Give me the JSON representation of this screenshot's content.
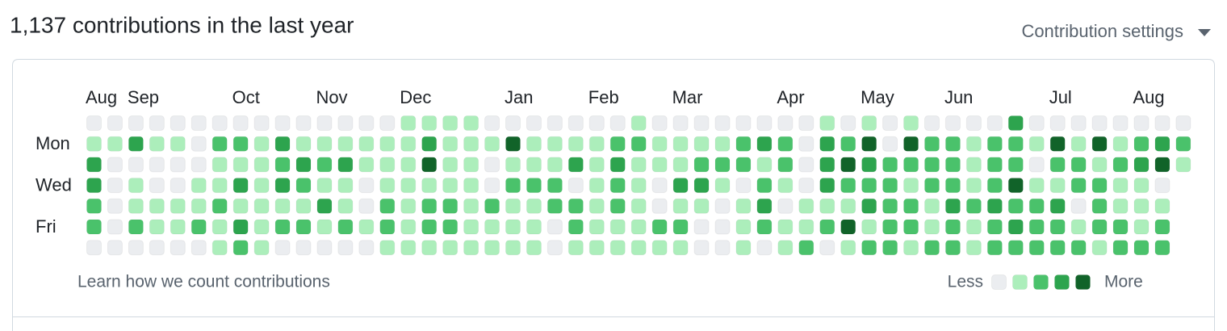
{
  "header": {
    "title": "1,137 contributions in the last year",
    "settings": "Contribution settings"
  },
  "calendar": {
    "months": [
      "Aug",
      null,
      "Sep",
      null,
      null,
      null,
      null,
      "Oct",
      null,
      null,
      null,
      "Nov",
      null,
      null,
      null,
      "Dec",
      null,
      null,
      null,
      null,
      "Jan",
      null,
      null,
      null,
      "Feb",
      null,
      null,
      null,
      "Mar",
      null,
      null,
      null,
      null,
      "Apr",
      null,
      null,
      null,
      "May",
      null,
      null,
      null,
      "Jun",
      null,
      null,
      null,
      null,
      "Jul",
      null,
      null,
      null,
      "Aug",
      null,
      null
    ],
    "days": [
      null,
      "Mon",
      null,
      "Wed",
      null,
      "Fri",
      null
    ],
    "colors": [
      "#ebedf0",
      "#aceebb",
      "#4ac26b",
      "#2da44e",
      "#116329"
    ],
    "rows": [
      [
        0,
        0,
        0,
        0,
        0,
        0,
        0,
        0,
        0,
        0,
        0,
        0,
        0,
        0,
        0,
        1,
        1,
        1,
        1,
        0,
        0,
        0,
        0,
        0,
        0,
        0,
        1,
        0,
        0,
        0,
        0,
        0,
        0,
        0,
        0,
        1,
        0,
        1,
        0,
        1,
        0,
        0,
        0,
        0,
        3,
        0,
        0,
        0,
        0,
        0,
        0,
        0,
        0
      ],
      [
        1,
        1,
        3,
        1,
        1,
        0,
        2,
        2,
        1,
        3,
        1,
        1,
        1,
        1,
        1,
        1,
        3,
        1,
        1,
        1,
        4,
        1,
        1,
        1,
        1,
        2,
        2,
        1,
        1,
        1,
        1,
        2,
        3,
        2,
        0,
        3,
        2,
        4,
        0,
        4,
        2,
        2,
        1,
        2,
        2,
        1,
        4,
        1,
        4,
        1,
        2,
        3,
        2
      ],
      [
        3,
        0,
        0,
        0,
        0,
        0,
        1,
        1,
        1,
        2,
        3,
        2,
        3,
        1,
        1,
        1,
        4,
        1,
        1,
        0,
        1,
        1,
        1,
        3,
        1,
        3,
        1,
        1,
        1,
        2,
        2,
        2,
        1,
        2,
        0,
        3,
        4,
        3,
        2,
        2,
        2,
        2,
        1,
        2,
        2,
        0,
        2,
        2,
        1,
        2,
        3,
        4,
        1
      ],
      [
        3,
        0,
        1,
        0,
        0,
        1,
        1,
        3,
        1,
        3,
        2,
        1,
        1,
        0,
        1,
        1,
        1,
        1,
        1,
        0,
        2,
        2,
        2,
        0,
        1,
        2,
        1,
        0,
        3,
        3,
        1,
        0,
        2,
        1,
        0,
        3,
        2,
        2,
        2,
        1,
        2,
        2,
        1,
        2,
        4,
        1,
        1,
        2,
        2,
        1,
        1,
        0
      ],
      [
        2,
        0,
        1,
        1,
        1,
        1,
        2,
        1,
        1,
        1,
        1,
        3,
        1,
        0,
        2,
        1,
        2,
        2,
        1,
        2,
        1,
        1,
        2,
        2,
        1,
        2,
        1,
        0,
        1,
        1,
        0,
        1,
        3,
        0,
        1,
        1,
        1,
        3,
        2,
        2,
        1,
        3,
        2,
        3,
        2,
        2,
        3,
        0,
        2,
        1,
        1,
        1
      ],
      [
        2,
        0,
        2,
        1,
        1,
        2,
        1,
        3,
        1,
        2,
        2,
        1,
        2,
        1,
        2,
        1,
        2,
        2,
        1,
        1,
        1,
        1,
        0,
        2,
        1,
        1,
        1,
        2,
        2,
        0,
        0,
        1,
        2,
        1,
        1,
        2,
        4,
        1,
        2,
        2,
        1,
        2,
        1,
        2,
        3,
        2,
        2,
        1,
        2,
        2,
        1,
        2
      ],
      [
        0,
        0,
        0,
        0,
        0,
        0,
        1,
        2,
        1,
        0,
        0,
        0,
        0,
        0,
        1,
        1,
        1,
        1,
        1,
        1,
        1,
        1,
        0,
        1,
        1,
        1,
        1,
        1,
        1,
        0,
        0,
        1,
        0,
        1,
        2,
        0,
        1,
        2,
        2,
        1,
        2,
        2,
        1,
        2,
        2,
        2,
        2,
        2,
        1,
        2,
        2,
        2
      ]
    ]
  },
  "footer": {
    "link": "Learn how we count contributions",
    "less": "Less",
    "more": "More",
    "levels": [
      0,
      1,
      2,
      3,
      4
    ]
  }
}
